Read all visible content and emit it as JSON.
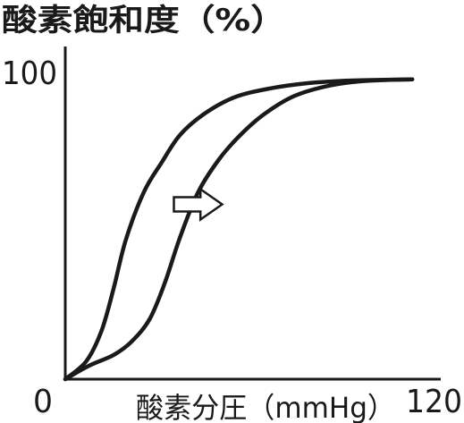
{
  "chart_data": {
    "type": "line",
    "ylabel": "酸素飽和度（%）",
    "xlabel": "酸素分圧（mmHg）",
    "xlim": [
      0,
      120
    ],
    "ylim": [
      0,
      100
    ],
    "x_tick_labels": [
      "0",
      "120"
    ],
    "y_tick_labels": [
      "100"
    ],
    "grid": false,
    "series": [
      {
        "x": [
          0,
          7,
          12,
          16,
          20,
          26,
          32,
          38,
          46,
          56,
          68,
          80,
          92,
          104,
          115
        ],
        "y": [
          0,
          6,
          16,
          30,
          46,
          62,
          72,
          81,
          88,
          93.5,
          96.5,
          98.2,
          99,
          99.3,
          99.5
        ]
      },
      {
        "x": [
          0,
          8,
          16,
          22,
          28,
          33,
          38,
          44,
          51,
          58,
          66,
          76,
          88,
          100,
          115
        ],
        "y": [
          0,
          4.5,
          8,
          12.5,
          20,
          32,
          47,
          62,
          73,
          81,
          88,
          94,
          97.5,
          99,
          99.5
        ]
      }
    ],
    "annotations": [
      {
        "type": "hollow-arrow",
        "direction": "right",
        "x_from": 36,
        "x_to": 52,
        "y": 58
      }
    ],
    "line_color": "#1a1a1a"
  }
}
